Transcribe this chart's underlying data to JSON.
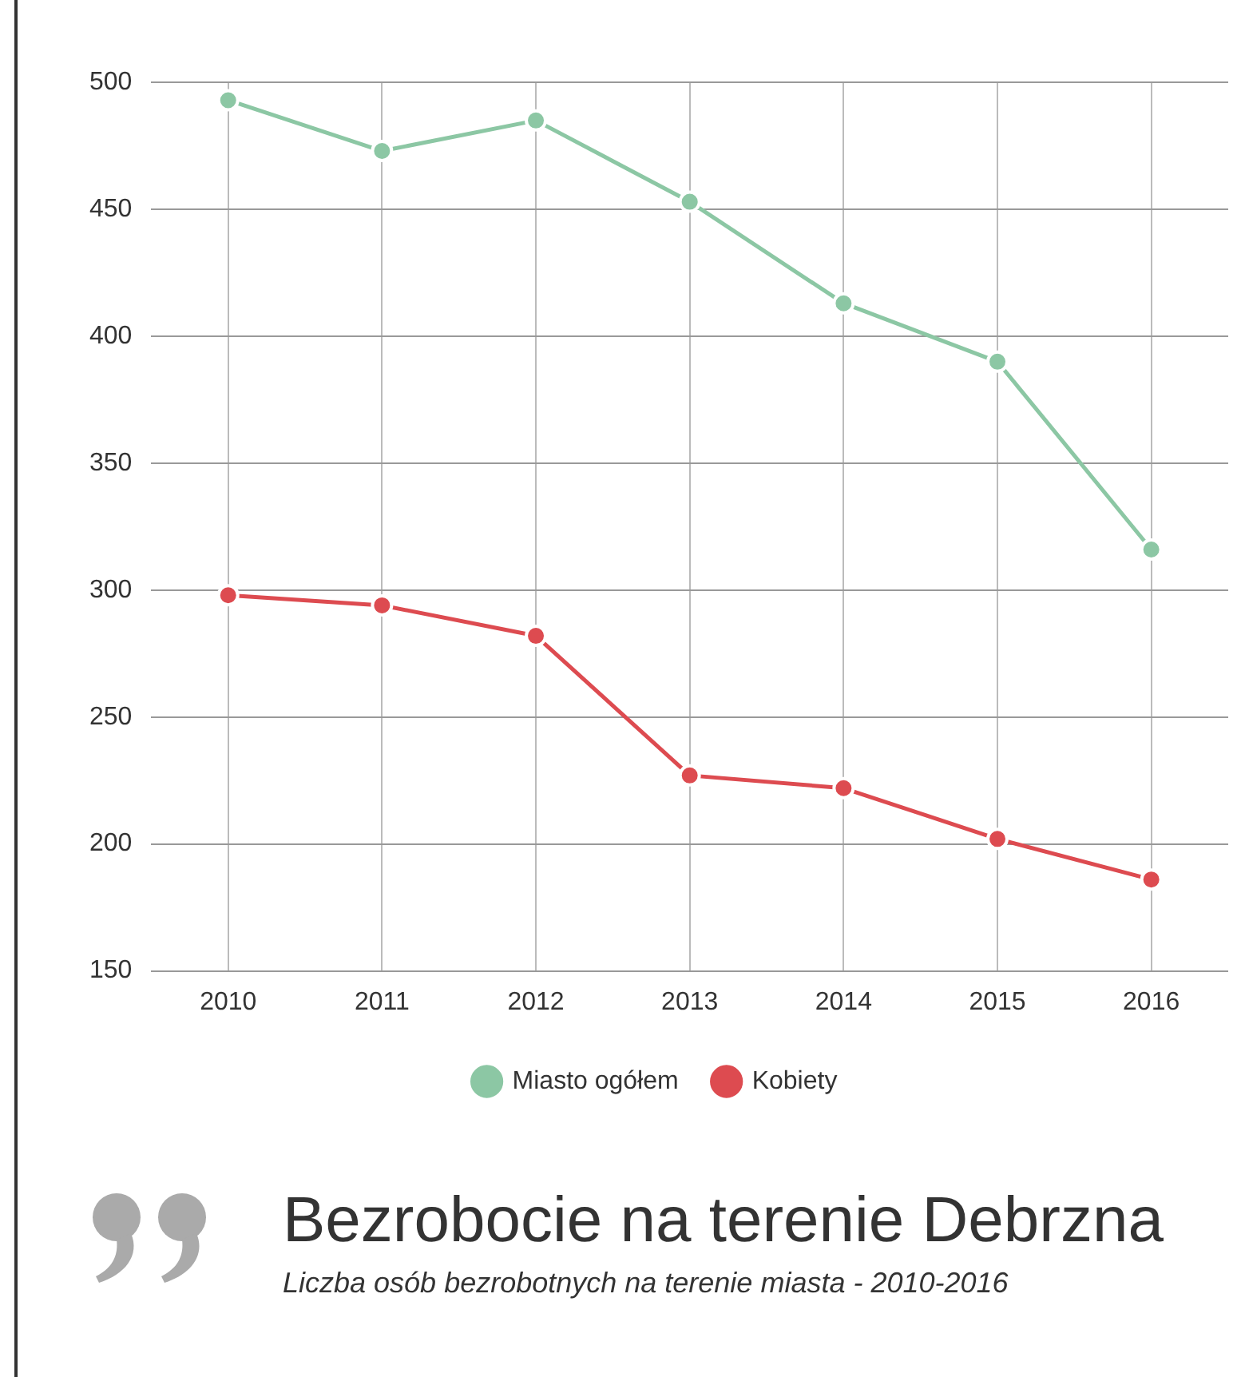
{
  "chart_data": {
    "type": "line",
    "title": "Bezrobocie na terenie Debrzna",
    "subtitle": "Liczba osób bezrobotnych na terenie miasta -  2010-2016",
    "categories": [
      "2010",
      "2011",
      "2012",
      "2013",
      "2014",
      "2015",
      "2016"
    ],
    "series": [
      {
        "name": "Miasto ogółem",
        "color": "#8cc7a4",
        "values": [
          493,
          473,
          485,
          453,
          413,
          390,
          316
        ]
      },
      {
        "name": "Kobiety",
        "color": "#dd4b50",
        "values": [
          298,
          294,
          282,
          227,
          222,
          202,
          186
        ]
      }
    ],
    "ylim": [
      150,
      500
    ],
    "yticks": [
      150,
      200,
      250,
      300,
      350,
      400,
      450,
      500
    ],
    "grid": true,
    "legend": "bottom",
    "marker": "circle",
    "line_style": "solid"
  }
}
